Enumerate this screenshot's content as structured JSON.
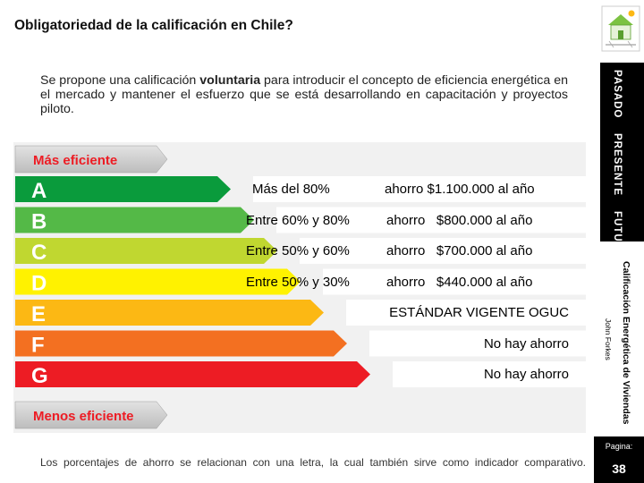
{
  "slide": {
    "title": "Obligatoriedad de la calificación en Chile?",
    "intro": {
      "part1": "Se propone una calificación ",
      "bold": "voluntaria",
      "part2": " para introducir el concepto de eficiencia energética en el mercado y mantener el esfuerzo que se está desarrollando en capacitación y proyectos piloto."
    },
    "footer": "Los porcentajes de ahorro se relacionan con una letra, la cual también sirve como indicador comparativo."
  },
  "scale": {
    "top_label": "Más eficiente",
    "bottom_label": "Menos eficiente",
    "classes": [
      {
        "letter": "A",
        "color": "#0a9b3c",
        "fill": 0.3,
        "range": "Más del 80%",
        "saving": "ahorro $1.100.000 al año"
      },
      {
        "letter": "B",
        "color": "#54b947",
        "fill": 0.4,
        "range": "Entre 60% y 80%",
        "saving": "ahorro   $800.000 al año"
      },
      {
        "letter": "C",
        "color": "#c0d730",
        "fill": 0.5,
        "range": "Entre 50% y 60%",
        "saving": "ahorro   $700.000 al año"
      },
      {
        "letter": "D",
        "color": "#fff200",
        "fill": 0.6,
        "range": "Entre 50% y 30%",
        "saving": "ahorro   $440.000 al año"
      },
      {
        "letter": "E",
        "color": "#fcb814",
        "fill": 0.7,
        "range": "",
        "saving": "ESTÁNDAR VIGENTE OGUC"
      },
      {
        "letter": "F",
        "color": "#f37021",
        "fill": 0.8,
        "range": "",
        "saving": "No hay ahorro"
      },
      {
        "letter": "G",
        "color": "#ed1c24",
        "fill": 0.9,
        "range": "",
        "saving": "No hay ahorro"
      }
    ]
  },
  "sidebar": {
    "timeline": [
      "PASADO",
      "PRESENTE",
      "FUTURO"
    ],
    "program": "Calificación Energética de Viviendas",
    "author": "John Forkes",
    "page_label": "Pagina:",
    "page_number": "38",
    "logo_icon": "house-diagram-icon"
  }
}
